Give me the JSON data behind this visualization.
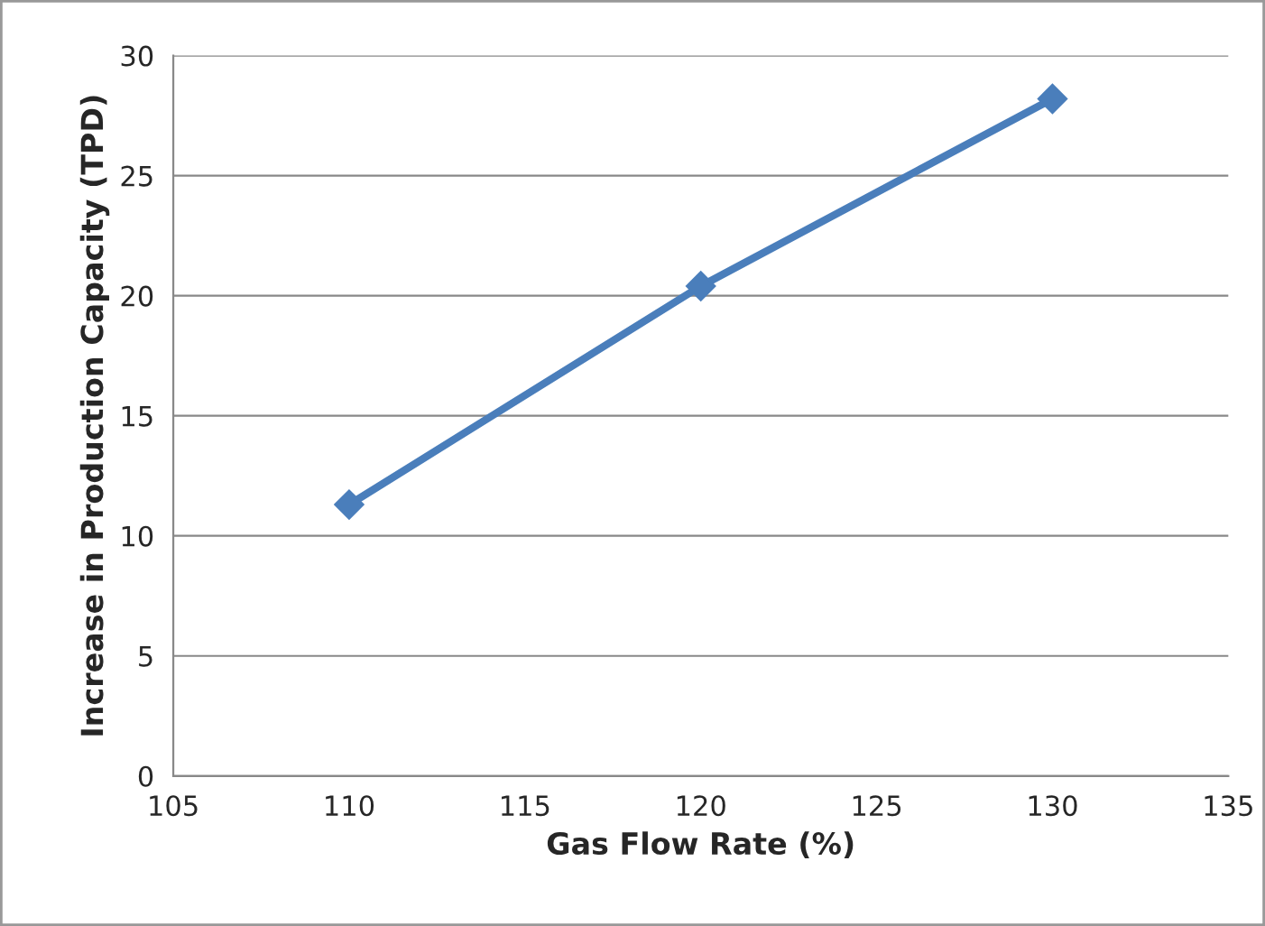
{
  "chart_data": {
    "type": "line",
    "xlabel": "Gas Flow Rate (%)",
    "ylabel": "Increase in Production Capacity (TPD)",
    "x": [
      110,
      120,
      130
    ],
    "series": [
      {
        "color": "#4a7ebb",
        "values": [
          11.3,
          20.4,
          28.2
        ]
      }
    ],
    "xlim": [
      105,
      135
    ],
    "xticks": [
      105,
      110,
      115,
      120,
      125,
      130,
      135
    ],
    "ylim": [
      0,
      30
    ],
    "yticks": [
      0,
      5,
      10,
      15,
      20,
      25,
      30
    ],
    "grid": "y",
    "marker": "diamond",
    "line_style": "solid"
  }
}
